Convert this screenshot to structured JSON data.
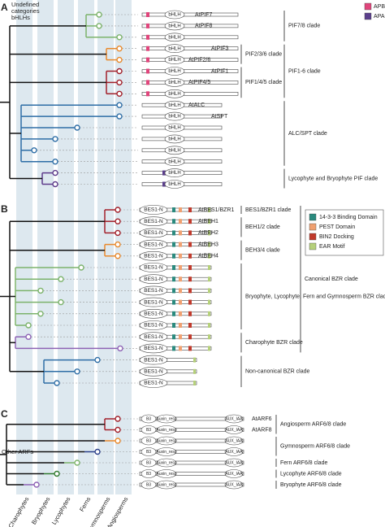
{
  "panels": [
    {
      "label": "A",
      "note": [
        "Undefined",
        "categories",
        "bHLHs"
      ],
      "legend": [
        "APB",
        "APA"
      ],
      "rows": [
        {
          "gene": "AtPIF7",
          "domain": "bHLH"
        },
        {
          "gene": "AtPIF8",
          "domain": "bHLH"
        },
        {
          "domain": "bHLH"
        },
        {
          "gene": "AtPIF3",
          "domain": "bHLH"
        },
        {
          "gene": "AtPIF2/6",
          "domain": "bHLH"
        },
        {
          "gene": "AtPIF1",
          "domain": "bHLH"
        },
        {
          "gene": "AtPIF4/5",
          "domain": "bHLH"
        },
        {
          "domain": "bHLH"
        },
        {
          "gene": "AtALC",
          "domain": "bHLH"
        },
        {
          "gene": "AtSPT",
          "domain": "bHLH"
        },
        {
          "domain": "bHLH"
        },
        {
          "domain": "bHLH"
        },
        {
          "domain": "bHLH"
        },
        {
          "domain": "bHLH"
        },
        {
          "domain": "bHLH"
        },
        {
          "domain": "bHLH"
        }
      ],
      "clades": [
        "PIF7/8 clade",
        "PIF2/3/6 clade",
        "PIF1/4/5 clade",
        "PIF1-6 clade",
        "ALC/SPT clade",
        "Lycophyte and Bryophyte PIF clade"
      ]
    },
    {
      "label": "B",
      "legend": [
        "14-3-3 Binding Domain",
        "PEST Domain",
        "BIN2 Docking",
        "EAR Motif"
      ],
      "rows": [
        {
          "gene": "AtBES1/BZR1",
          "domain": "BES1-N"
        },
        {
          "gene": "AtBEH1",
          "domain": "BES1-N"
        },
        {
          "gene": "AtBEH2",
          "domain": "BES1-N"
        },
        {
          "gene": "AtBEH3",
          "domain": "BES1-N"
        },
        {
          "gene": "AtBEH4",
          "domain": "BES1-N"
        },
        {
          "domain": "BES1-N"
        },
        {
          "domain": "BES1-N"
        },
        {
          "domain": "BES1-N"
        },
        {
          "domain": "BES1-N"
        },
        {
          "domain": "BES1-N"
        },
        {
          "domain": "BES1-N"
        },
        {
          "domain": "BES1-N"
        },
        {
          "domain": "BES1-N"
        },
        {
          "domain": "BES1-N"
        },
        {
          "domain": "BES1-N"
        },
        {
          "domain": "BES1-N"
        }
      ],
      "clades": [
        "BES1/BZR1 clade",
        "BEH1/2 clade",
        "BEH3/4 clade",
        "Bryophyte, Lycophyte, Fern and Gymnosperm BZR clade",
        "Charophyte BZR clade",
        "Canonical BZR clade",
        "Non-canonical BZR clade"
      ]
    },
    {
      "label": "C",
      "note": [
        "Other ARFs"
      ],
      "rows": [
        {
          "gene": "AtARF6",
          "domains": [
            "B3",
            "Auxin_resp",
            "AUX_IAA"
          ]
        },
        {
          "gene": "AtARF8",
          "domains": [
            "B3",
            "Auxin_resp",
            "AUX_IAA"
          ]
        },
        {
          "domains": [
            "B3",
            "Auxin_resp",
            "AUX_IAA"
          ]
        },
        {
          "domains": [
            "B3",
            "Auxin_resp",
            "AUX_IAA"
          ]
        },
        {
          "domains": [
            "B3",
            "Auxin_resp",
            "AUX_IAA"
          ]
        },
        {
          "domains": [
            "B3",
            "Auxin_resp",
            "AUX_IAA"
          ]
        },
        {
          "domains": [
            "B3",
            "Auxin_resp",
            "AUX_IAA"
          ]
        }
      ],
      "clades": [
        "Angiosperm ARF6/8 clade",
        "Gymnosperm ARF6/8 clade",
        "Fern ARF6/8 clade",
        "Lycophyte ARF6/8 clade",
        "Bryophyte ARF6/8 clade"
      ]
    }
  ],
  "lineages": [
    "Charophytes",
    "Bryophytes",
    "Lycophytes",
    "Ferns",
    "Gymnosperms",
    "Angiosperms"
  ]
}
